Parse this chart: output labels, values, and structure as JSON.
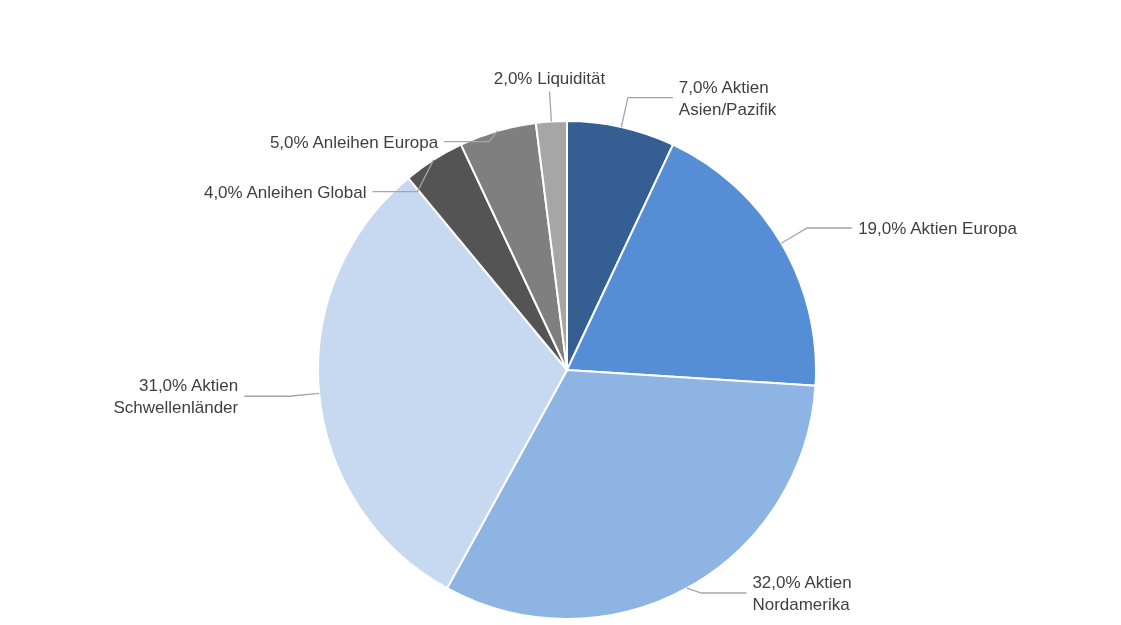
{
  "chart_data": {
    "type": "pie",
    "categories": [
      "Aktien Asien/Pazifik",
      "Aktien Europa",
      "Aktien Nordamerika",
      "Aktien Schwellenländer",
      "Anleihen Global",
      "Anleihen Europa",
      "Liquidität"
    ],
    "values": [
      7,
      19,
      32,
      31,
      4,
      5,
      2
    ],
    "value_labels": [
      "7,0%",
      "19,0%",
      "32,0%",
      "31,0%",
      "4,0%",
      "5,0%",
      "2,0%"
    ],
    "colors": [
      "#355f93",
      "#558ed5",
      "#8eb4e3",
      "#c6d9f1",
      "#545454",
      "#7f7f7f",
      "#a6a6a6"
    ]
  }
}
